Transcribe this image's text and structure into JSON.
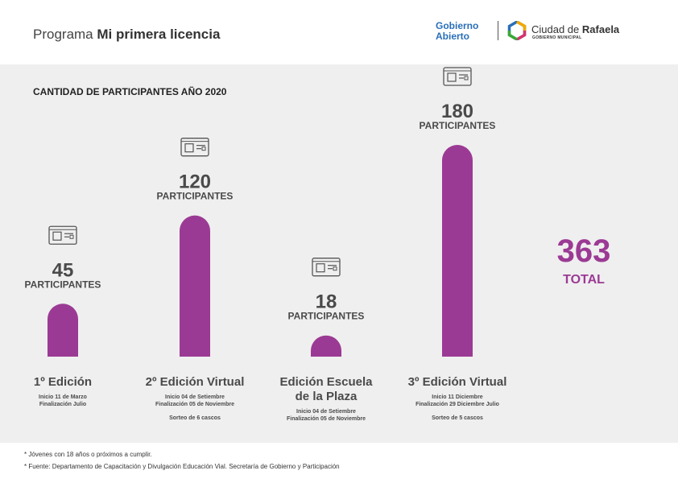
{
  "header": {
    "title_prefix": "Programa",
    "title_bold": "Mi primera licencia",
    "logo_gob_line1": "Gobierno",
    "logo_gob_line2": "Abierto",
    "logo_city_prefix": "Ciudad de",
    "logo_city_bold": "Rafaela",
    "logo_city_sub": "GOBIERNO MUNICIPAL"
  },
  "colors": {
    "bar": "#9b3a94",
    "panel": "#efefef",
    "total": "#9b3a94"
  },
  "chart_data": {
    "type": "bar",
    "title": "CANTIDAD DE PARTICIPANTES AÑO 2020",
    "unit_label": "PARTICIPANTES",
    "icon": "id-card-icon",
    "categories": [
      "1º Edición",
      "2º Edición Virtual",
      "Edición Escuela de la Plaza",
      "3º Edición Virtual"
    ],
    "values": [
      45,
      120,
      18,
      180
    ],
    "details": [
      {
        "lines": [
          "Inicio 11 de Marzo",
          "Finalización Julio"
        ],
        "note": ""
      },
      {
        "lines": [
          "Inicio 04 de Setiembre",
          "Finalización 05 de Noviembre"
        ],
        "note": "Sorteo de 6 cascos"
      },
      {
        "lines": [
          "Inicio 04 de Setiembre",
          "Finalización 05 de Noviembre"
        ],
        "note": ""
      },
      {
        "lines": [
          "Inicio 11 Diciembre",
          "Finalización 29 Diciembre Julio"
        ],
        "note": "Sorteo de 5 cascos"
      }
    ],
    "total": 363,
    "total_label": "TOTAL"
  },
  "footer": {
    "note1": "* Jóvenes con 18 años o próximos a cumplir.",
    "note2": "* Fuente: Departamento de Capacitación y Divulgación Educación Vial.  Secretaría de Gobierno y Participación"
  }
}
